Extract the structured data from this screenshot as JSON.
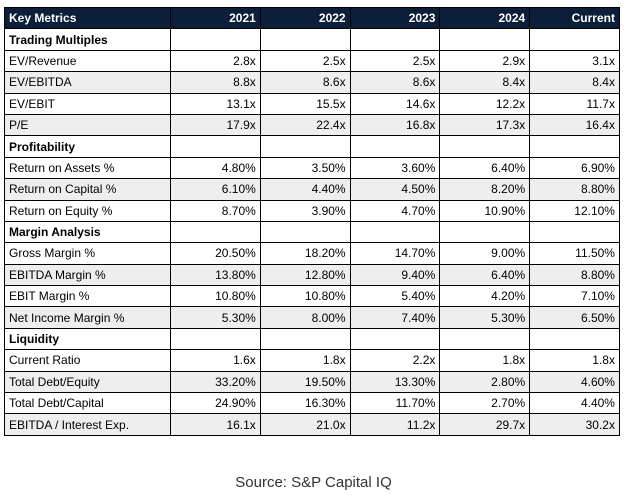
{
  "table": {
    "headers": [
      "Key Metrics",
      "2021",
      "2022",
      "2023",
      "2024",
      "Current"
    ],
    "sections": [
      {
        "title": "Trading Multiples",
        "rows": [
          {
            "label": "EV/Revenue",
            "values": [
              "2.8x",
              "2.5x",
              "2.5x",
              "2.9x",
              "3.1x"
            ]
          },
          {
            "label": "EV/EBITDA",
            "values": [
              "8.8x",
              "8.6x",
              "8.6x",
              "8.4x",
              "8.4x"
            ]
          },
          {
            "label": "EV/EBIT",
            "values": [
              "13.1x",
              "15.5x",
              "14.6x",
              "12.2x",
              "11.7x"
            ]
          },
          {
            "label": "P/E",
            "values": [
              "17.9x",
              "22.4x",
              "16.8x",
              "17.3x",
              "16.4x"
            ]
          }
        ]
      },
      {
        "title": "Profitability",
        "rows": [
          {
            "label": "Return on Assets %",
            "values": [
              "4.80%",
              "3.50%",
              "3.60%",
              "6.40%",
              "6.90%"
            ]
          },
          {
            "label": "Return on Capital %",
            "values": [
              "6.10%",
              "4.40%",
              "4.50%",
              "8.20%",
              "8.80%"
            ]
          },
          {
            "label": "Return on Equity %",
            "values": [
              "8.70%",
              "3.90%",
              "4.70%",
              "10.90%",
              "12.10%"
            ]
          }
        ]
      },
      {
        "title": "Margin Analysis",
        "rows": [
          {
            "label": "Gross Margin %",
            "values": [
              "20.50%",
              "18.20%",
              "14.70%",
              "9.00%",
              "11.50%"
            ]
          },
          {
            "label": "EBITDA Margin %",
            "values": [
              "13.80%",
              "12.80%",
              "9.40%",
              "6.40%",
              "8.80%"
            ]
          },
          {
            "label": "EBIT Margin %",
            "values": [
              "10.80%",
              "10.80%",
              "5.40%",
              "4.20%",
              "7.10%"
            ]
          },
          {
            "label": "Net Income Margin %",
            "values": [
              "5.30%",
              "8.00%",
              "7.40%",
              "5.30%",
              "6.50%"
            ]
          }
        ]
      },
      {
        "title": "Liquidity",
        "rows": [
          {
            "label": "Current Ratio",
            "values": [
              "1.6x",
              "1.8x",
              "2.2x",
              "1.8x",
              "1.8x"
            ]
          },
          {
            "label": "Total Debt/Equity",
            "values": [
              "33.20%",
              "19.50%",
              "13.30%",
              "2.80%",
              "4.60%"
            ]
          },
          {
            "label": "Total Debt/Capital",
            "values": [
              "24.90%",
              "16.30%",
              "11.70%",
              "2.70%",
              "4.40%"
            ]
          },
          {
            "label": "EBITDA / Interest Exp.",
            "values": [
              "16.1x",
              "21.0x",
              "11.2x",
              "29.7x",
              "30.2x"
            ]
          }
        ]
      }
    ]
  },
  "source": "Source: S&P Capital IQ",
  "colors": {
    "header_bg": "#0b1f3a",
    "header_text": "#ffffff",
    "shade_row": "#eeeeee",
    "border": "#000000"
  }
}
